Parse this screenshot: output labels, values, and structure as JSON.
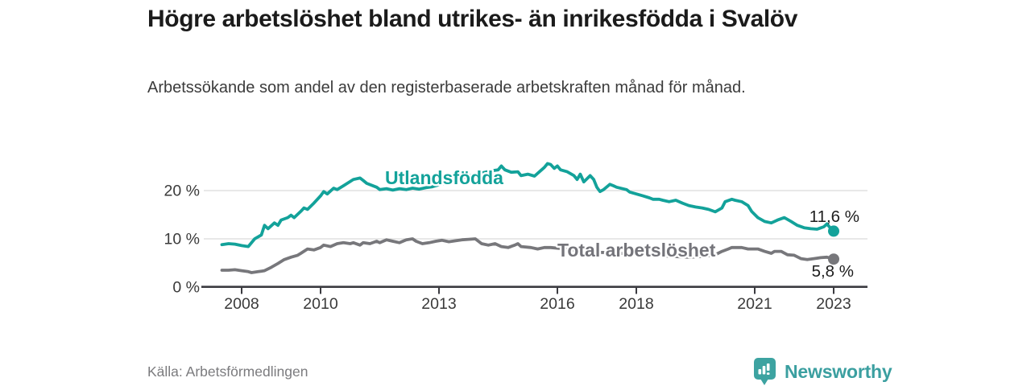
{
  "header": {
    "title": "Högre arbetslöshet bland utrikes- än inrikesfödda i Svalöv",
    "subtitle": "Arbetssökande som andel av den registerbaserade arbetskraften månad för månad."
  },
  "footer": {
    "source": "Källa: Arbetsförmedlingen",
    "brand": "Newsworthy"
  },
  "colors": {
    "background": "#ffffff",
    "title_text": "#1b1b1b",
    "subtitle_text": "#3b3b3b",
    "axis": "#3b3b40",
    "grid": "#d9d9d9",
    "tick_text": "#3a3a3a",
    "value_label": "#1d1d1d",
    "source_text": "#7b7b7e",
    "brand_teal": "#3b9fa0",
    "series_teal": "#13a29a",
    "series_gray": "#77777b"
  },
  "chart_data": {
    "type": "line",
    "title": "Högre arbetslöshet bland utrikes- än inrikesfödda i Svalöv",
    "subtitle": "Arbetssökande som andel av den registerbaserade arbetskraften månad för månad.",
    "source": "Källa: Arbetsförmedlingen",
    "grid": "horizontal",
    "xlabel": "",
    "ylabel": "",
    "ylim": [
      0,
      28
    ],
    "xlim": [
      2007.5,
      2024.3
    ],
    "x_ticks": [
      {
        "label": "2008",
        "year": 2008.5
      },
      {
        "label": "2010",
        "year": 2010.5
      },
      {
        "label": "2013",
        "year": 2013.5
      },
      {
        "label": "2016",
        "year": 2016.5
      },
      {
        "label": "2018",
        "year": 2018.5
      },
      {
        "label": "2021",
        "year": 2021.5
      },
      {
        "label": "2023",
        "year": 2023.5
      }
    ],
    "y_ticks": [
      {
        "label": "0 %",
        "value": 0
      },
      {
        "label": "10 %",
        "value": 10
      },
      {
        "label": "20 %",
        "value": 20
      }
    ],
    "series": [
      {
        "id": "utlandsfodda",
        "name": "Utlandsfödda",
        "color": "#13a29a",
        "label_color": "#13a29a",
        "end_label": "11,6 %",
        "end_value": 11.6,
        "points": [
          [
            2008.0,
            8.8
          ],
          [
            2008.17,
            9.0
          ],
          [
            2008.33,
            8.9
          ],
          [
            2008.5,
            8.6
          ],
          [
            2008.67,
            8.4
          ],
          [
            2008.83,
            10.0
          ],
          [
            2009.0,
            10.8
          ],
          [
            2009.08,
            12.8
          ],
          [
            2009.17,
            12.1
          ],
          [
            2009.33,
            13.3
          ],
          [
            2009.42,
            12.8
          ],
          [
            2009.5,
            13.9
          ],
          [
            2009.67,
            14.4
          ],
          [
            2009.75,
            14.9
          ],
          [
            2009.83,
            14.4
          ],
          [
            2010.0,
            15.7
          ],
          [
            2010.08,
            16.4
          ],
          [
            2010.17,
            16.1
          ],
          [
            2010.33,
            17.4
          ],
          [
            2010.5,
            18.9
          ],
          [
            2010.58,
            19.8
          ],
          [
            2010.67,
            19.3
          ],
          [
            2010.83,
            20.5
          ],
          [
            2010.92,
            20.2
          ],
          [
            2011.08,
            21.0
          ],
          [
            2011.33,
            22.3
          ],
          [
            2011.5,
            22.6
          ],
          [
            2011.58,
            22.1
          ],
          [
            2011.67,
            21.5
          ],
          [
            2011.92,
            20.7
          ],
          [
            2012.0,
            20.2
          ],
          [
            2012.17,
            20.4
          ],
          [
            2012.33,
            20.1
          ],
          [
            2012.5,
            20.4
          ],
          [
            2012.67,
            20.2
          ],
          [
            2012.83,
            20.5
          ],
          [
            2013.0,
            20.3
          ],
          [
            2013.17,
            20.6
          ],
          [
            2013.33,
            20.8
          ],
          [
            2013.5,
            21.2
          ],
          [
            2013.67,
            21.6
          ],
          [
            2013.83,
            22.0
          ],
          [
            2014.0,
            22.4
          ],
          [
            2014.17,
            22.8
          ],
          [
            2014.33,
            23.2
          ],
          [
            2014.5,
            23.5
          ],
          [
            2014.67,
            23.8
          ],
          [
            2014.83,
            24.1
          ],
          [
            2015.0,
            24.3
          ],
          [
            2015.08,
            25.1
          ],
          [
            2015.17,
            24.3
          ],
          [
            2015.33,
            23.8
          ],
          [
            2015.5,
            23.9
          ],
          [
            2015.58,
            23.1
          ],
          [
            2015.75,
            23.4
          ],
          [
            2015.92,
            23.0
          ],
          [
            2016.17,
            24.8
          ],
          [
            2016.25,
            25.6
          ],
          [
            2016.33,
            25.4
          ],
          [
            2016.42,
            24.6
          ],
          [
            2016.5,
            25.1
          ],
          [
            2016.58,
            24.3
          ],
          [
            2016.75,
            23.9
          ],
          [
            2016.92,
            23.1
          ],
          [
            2017.0,
            22.3
          ],
          [
            2017.08,
            23.4
          ],
          [
            2017.17,
            21.8
          ],
          [
            2017.33,
            23.1
          ],
          [
            2017.42,
            22.3
          ],
          [
            2017.5,
            20.7
          ],
          [
            2017.58,
            19.8
          ],
          [
            2017.67,
            20.2
          ],
          [
            2017.83,
            21.3
          ],
          [
            2017.92,
            21.0
          ],
          [
            2018.0,
            20.7
          ],
          [
            2018.25,
            20.2
          ],
          [
            2018.33,
            19.7
          ],
          [
            2018.5,
            19.3
          ],
          [
            2018.67,
            18.9
          ],
          [
            2018.83,
            18.5
          ],
          [
            2018.92,
            18.2
          ],
          [
            2019.08,
            18.2
          ],
          [
            2019.17,
            18.0
          ],
          [
            2019.33,
            17.7
          ],
          [
            2019.5,
            18.0
          ],
          [
            2019.67,
            17.4
          ],
          [
            2019.83,
            16.9
          ],
          [
            2020.0,
            16.6
          ],
          [
            2020.17,
            16.4
          ],
          [
            2020.33,
            16.1
          ],
          [
            2020.5,
            15.6
          ],
          [
            2020.67,
            16.4
          ],
          [
            2020.75,
            17.7
          ],
          [
            2020.92,
            18.2
          ],
          [
            2021.0,
            18.0
          ],
          [
            2021.17,
            17.7
          ],
          [
            2021.33,
            16.9
          ],
          [
            2021.42,
            15.7
          ],
          [
            2021.58,
            14.4
          ],
          [
            2021.75,
            13.6
          ],
          [
            2021.92,
            13.3
          ],
          [
            2022.08,
            13.9
          ],
          [
            2022.25,
            14.4
          ],
          [
            2022.42,
            13.6
          ],
          [
            2022.58,
            12.8
          ],
          [
            2022.75,
            12.3
          ],
          [
            2022.92,
            12.1
          ],
          [
            2023.08,
            12.0
          ],
          [
            2023.25,
            12.5
          ],
          [
            2023.33,
            13.1
          ],
          [
            2023.42,
            12.2
          ],
          [
            2023.5,
            11.6
          ]
        ]
      },
      {
        "id": "total",
        "name": "Total arbetslöshet",
        "color": "#77777b",
        "label_color": "#74747a",
        "end_label": "5,8 %",
        "end_value": 5.8,
        "points": [
          [
            2008.0,
            3.5
          ],
          [
            2008.17,
            3.5
          ],
          [
            2008.33,
            3.6
          ],
          [
            2008.5,
            3.4
          ],
          [
            2008.67,
            3.2
          ],
          [
            2008.75,
            3.0
          ],
          [
            2008.92,
            3.2
          ],
          [
            2009.0,
            3.3
          ],
          [
            2009.08,
            3.4
          ],
          [
            2009.25,
            4.1
          ],
          [
            2009.42,
            4.9
          ],
          [
            2009.58,
            5.7
          ],
          [
            2009.75,
            6.2
          ],
          [
            2009.92,
            6.6
          ],
          [
            2010.0,
            7.0
          ],
          [
            2010.17,
            7.9
          ],
          [
            2010.33,
            7.7
          ],
          [
            2010.5,
            8.2
          ],
          [
            2010.58,
            8.7
          ],
          [
            2010.75,
            8.4
          ],
          [
            2010.92,
            9.0
          ],
          [
            2011.08,
            9.2
          ],
          [
            2011.25,
            9.0
          ],
          [
            2011.33,
            9.2
          ],
          [
            2011.5,
            8.7
          ],
          [
            2011.58,
            9.2
          ],
          [
            2011.75,
            9.0
          ],
          [
            2011.92,
            9.5
          ],
          [
            2012.0,
            9.2
          ],
          [
            2012.17,
            9.8
          ],
          [
            2012.33,
            9.5
          ],
          [
            2012.5,
            9.2
          ],
          [
            2012.67,
            9.8
          ],
          [
            2012.83,
            10.0
          ],
          [
            2012.92,
            9.5
          ],
          [
            2013.08,
            9.0
          ],
          [
            2013.25,
            9.2
          ],
          [
            2013.42,
            9.5
          ],
          [
            2013.58,
            9.7
          ],
          [
            2013.75,
            9.4
          ],
          [
            2013.92,
            9.6
          ],
          [
            2014.08,
            9.8
          ],
          [
            2014.25,
            9.9
          ],
          [
            2014.42,
            10.0
          ],
          [
            2014.58,
            9.0
          ],
          [
            2014.75,
            8.7
          ],
          [
            2014.92,
            9.0
          ],
          [
            2015.08,
            8.4
          ],
          [
            2015.25,
            8.2
          ],
          [
            2015.42,
            8.7
          ],
          [
            2015.5,
            9.0
          ],
          [
            2015.58,
            8.4
          ],
          [
            2015.83,
            8.2
          ],
          [
            2016.0,
            7.9
          ],
          [
            2016.17,
            8.2
          ],
          [
            2016.33,
            8.2
          ],
          [
            2016.58,
            8.0
          ],
          [
            2016.83,
            7.8
          ],
          [
            2017.08,
            7.5
          ],
          [
            2017.33,
            7.4
          ],
          [
            2017.58,
            7.2
          ],
          [
            2017.83,
            7.1
          ],
          [
            2018.08,
            7.0
          ],
          [
            2018.33,
            6.9
          ],
          [
            2018.58,
            6.8
          ],
          [
            2018.83,
            6.6
          ],
          [
            2019.08,
            6.5
          ],
          [
            2019.33,
            6.4
          ],
          [
            2019.58,
            6.3
          ],
          [
            2019.83,
            6.2
          ],
          [
            2020.08,
            6.3
          ],
          [
            2020.33,
            6.5
          ],
          [
            2020.5,
            6.7
          ],
          [
            2020.67,
            7.4
          ],
          [
            2020.83,
            7.9
          ],
          [
            2020.92,
            8.2
          ],
          [
            2021.17,
            8.2
          ],
          [
            2021.33,
            7.9
          ],
          [
            2021.58,
            7.9
          ],
          [
            2021.75,
            7.4
          ],
          [
            2021.92,
            7.0
          ],
          [
            2022.0,
            7.4
          ],
          [
            2022.17,
            7.4
          ],
          [
            2022.33,
            6.7
          ],
          [
            2022.5,
            6.6
          ],
          [
            2022.67,
            5.9
          ],
          [
            2022.83,
            5.7
          ],
          [
            2023.0,
            5.9
          ],
          [
            2023.17,
            6.1
          ],
          [
            2023.33,
            6.2
          ],
          [
            2023.5,
            5.8
          ]
        ]
      }
    ]
  }
}
